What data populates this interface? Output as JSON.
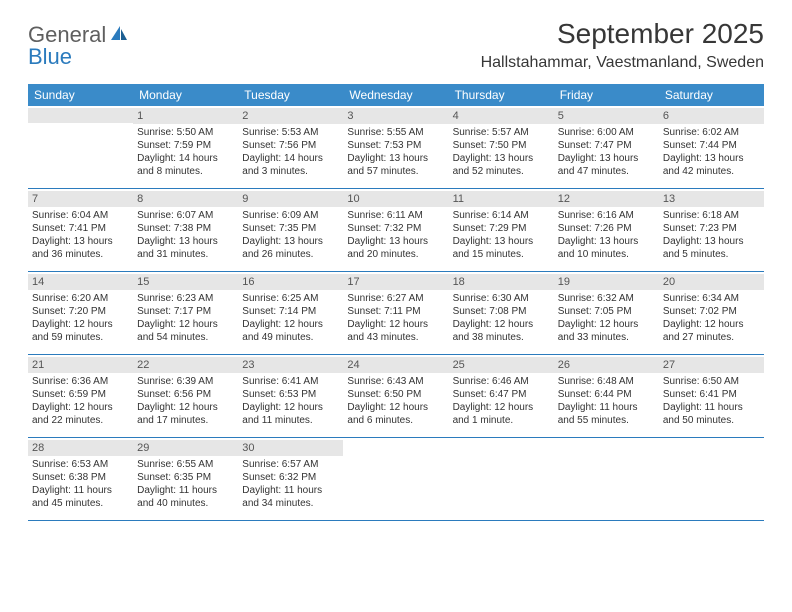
{
  "logo": {
    "text_general": "General",
    "text_blue": "Blue"
  },
  "title": "September 2025",
  "location": "Hallstahammar, Vaestmanland, Sweden",
  "weekdays": [
    "Sunday",
    "Monday",
    "Tuesday",
    "Wednesday",
    "Thursday",
    "Friday",
    "Saturday"
  ],
  "header_bg": "#3a8bc9",
  "rule_color": "#2b7bbd",
  "band_bg": "#e6e6e6",
  "weeks": [
    [
      null,
      {
        "n": "1",
        "sr": "Sunrise: 5:50 AM",
        "ss": "Sunset: 7:59 PM",
        "d1": "Daylight: 14 hours",
        "d2": "and 8 minutes."
      },
      {
        "n": "2",
        "sr": "Sunrise: 5:53 AM",
        "ss": "Sunset: 7:56 PM",
        "d1": "Daylight: 14 hours",
        "d2": "and 3 minutes."
      },
      {
        "n": "3",
        "sr": "Sunrise: 5:55 AM",
        "ss": "Sunset: 7:53 PM",
        "d1": "Daylight: 13 hours",
        "d2": "and 57 minutes."
      },
      {
        "n": "4",
        "sr": "Sunrise: 5:57 AM",
        "ss": "Sunset: 7:50 PM",
        "d1": "Daylight: 13 hours",
        "d2": "and 52 minutes."
      },
      {
        "n": "5",
        "sr": "Sunrise: 6:00 AM",
        "ss": "Sunset: 7:47 PM",
        "d1": "Daylight: 13 hours",
        "d2": "and 47 minutes."
      },
      {
        "n": "6",
        "sr": "Sunrise: 6:02 AM",
        "ss": "Sunset: 7:44 PM",
        "d1": "Daylight: 13 hours",
        "d2": "and 42 minutes."
      }
    ],
    [
      {
        "n": "7",
        "sr": "Sunrise: 6:04 AM",
        "ss": "Sunset: 7:41 PM",
        "d1": "Daylight: 13 hours",
        "d2": "and 36 minutes."
      },
      {
        "n": "8",
        "sr": "Sunrise: 6:07 AM",
        "ss": "Sunset: 7:38 PM",
        "d1": "Daylight: 13 hours",
        "d2": "and 31 minutes."
      },
      {
        "n": "9",
        "sr": "Sunrise: 6:09 AM",
        "ss": "Sunset: 7:35 PM",
        "d1": "Daylight: 13 hours",
        "d2": "and 26 minutes."
      },
      {
        "n": "10",
        "sr": "Sunrise: 6:11 AM",
        "ss": "Sunset: 7:32 PM",
        "d1": "Daylight: 13 hours",
        "d2": "and 20 minutes."
      },
      {
        "n": "11",
        "sr": "Sunrise: 6:14 AM",
        "ss": "Sunset: 7:29 PM",
        "d1": "Daylight: 13 hours",
        "d2": "and 15 minutes."
      },
      {
        "n": "12",
        "sr": "Sunrise: 6:16 AM",
        "ss": "Sunset: 7:26 PM",
        "d1": "Daylight: 13 hours",
        "d2": "and 10 minutes."
      },
      {
        "n": "13",
        "sr": "Sunrise: 6:18 AM",
        "ss": "Sunset: 7:23 PM",
        "d1": "Daylight: 13 hours",
        "d2": "and 5 minutes."
      }
    ],
    [
      {
        "n": "14",
        "sr": "Sunrise: 6:20 AM",
        "ss": "Sunset: 7:20 PM",
        "d1": "Daylight: 12 hours",
        "d2": "and 59 minutes."
      },
      {
        "n": "15",
        "sr": "Sunrise: 6:23 AM",
        "ss": "Sunset: 7:17 PM",
        "d1": "Daylight: 12 hours",
        "d2": "and 54 minutes."
      },
      {
        "n": "16",
        "sr": "Sunrise: 6:25 AM",
        "ss": "Sunset: 7:14 PM",
        "d1": "Daylight: 12 hours",
        "d2": "and 49 minutes."
      },
      {
        "n": "17",
        "sr": "Sunrise: 6:27 AM",
        "ss": "Sunset: 7:11 PM",
        "d1": "Daylight: 12 hours",
        "d2": "and 43 minutes."
      },
      {
        "n": "18",
        "sr": "Sunrise: 6:30 AM",
        "ss": "Sunset: 7:08 PM",
        "d1": "Daylight: 12 hours",
        "d2": "and 38 minutes."
      },
      {
        "n": "19",
        "sr": "Sunrise: 6:32 AM",
        "ss": "Sunset: 7:05 PM",
        "d1": "Daylight: 12 hours",
        "d2": "and 33 minutes."
      },
      {
        "n": "20",
        "sr": "Sunrise: 6:34 AM",
        "ss": "Sunset: 7:02 PM",
        "d1": "Daylight: 12 hours",
        "d2": "and 27 minutes."
      }
    ],
    [
      {
        "n": "21",
        "sr": "Sunrise: 6:36 AM",
        "ss": "Sunset: 6:59 PM",
        "d1": "Daylight: 12 hours",
        "d2": "and 22 minutes."
      },
      {
        "n": "22",
        "sr": "Sunrise: 6:39 AM",
        "ss": "Sunset: 6:56 PM",
        "d1": "Daylight: 12 hours",
        "d2": "and 17 minutes."
      },
      {
        "n": "23",
        "sr": "Sunrise: 6:41 AM",
        "ss": "Sunset: 6:53 PM",
        "d1": "Daylight: 12 hours",
        "d2": "and 11 minutes."
      },
      {
        "n": "24",
        "sr": "Sunrise: 6:43 AM",
        "ss": "Sunset: 6:50 PM",
        "d1": "Daylight: 12 hours",
        "d2": "and 6 minutes."
      },
      {
        "n": "25",
        "sr": "Sunrise: 6:46 AM",
        "ss": "Sunset: 6:47 PM",
        "d1": "Daylight: 12 hours",
        "d2": "and 1 minute."
      },
      {
        "n": "26",
        "sr": "Sunrise: 6:48 AM",
        "ss": "Sunset: 6:44 PM",
        "d1": "Daylight: 11 hours",
        "d2": "and 55 minutes."
      },
      {
        "n": "27",
        "sr": "Sunrise: 6:50 AM",
        "ss": "Sunset: 6:41 PM",
        "d1": "Daylight: 11 hours",
        "d2": "and 50 minutes."
      }
    ],
    [
      {
        "n": "28",
        "sr": "Sunrise: 6:53 AM",
        "ss": "Sunset: 6:38 PM",
        "d1": "Daylight: 11 hours",
        "d2": "and 45 minutes."
      },
      {
        "n": "29",
        "sr": "Sunrise: 6:55 AM",
        "ss": "Sunset: 6:35 PM",
        "d1": "Daylight: 11 hours",
        "d2": "and 40 minutes."
      },
      {
        "n": "30",
        "sr": "Sunrise: 6:57 AM",
        "ss": "Sunset: 6:32 PM",
        "d1": "Daylight: 11 hours",
        "d2": "and 34 minutes."
      },
      null,
      null,
      null,
      null
    ]
  ]
}
